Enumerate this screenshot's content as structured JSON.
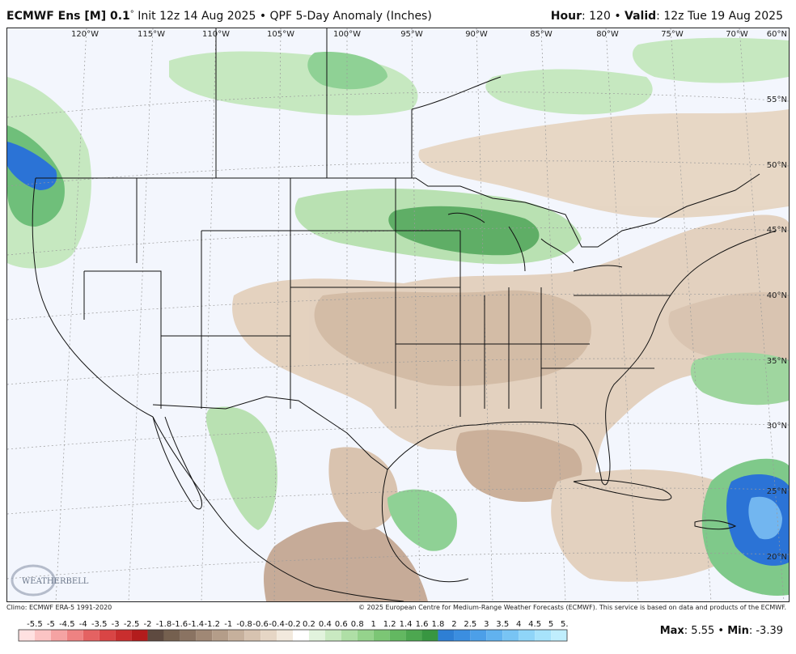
{
  "header": {
    "model": "ECMWF Ens [M] 0.1",
    "degree_symbol": "°",
    "init": " Init 12z 14 Aug 2025 • QPF 5-Day Anomaly (Inches)",
    "hour_label": "Hour",
    "hour_value": ": 120 • ",
    "valid_label": "Valid",
    "valid_value": ": 12z Tue 19 Aug 2025"
  },
  "map": {
    "lon_labels": [
      "120°W",
      "115°W",
      "110°W",
      "105°W",
      "100°W",
      "95°W",
      "90°W",
      "85°W",
      "80°W",
      "75°W",
      "70°W"
    ],
    "lat_labels": [
      "60°N",
      "55°N",
      "50°N",
      "45°N",
      "40°N",
      "35°N",
      "30°N",
      "25°N",
      "20°N"
    ],
    "logo": "WEATHERBELL",
    "colors": {
      "ocean_background": "#f3f6fd",
      "dry_light": "#eadcc9",
      "dry_medium": "#d6bda6",
      "dry_dark": "#9c8574",
      "wet_light": "#c6e8c0",
      "wet_medium": "#7fc98a",
      "wet_dark": "#3f9e55",
      "very_wet": "#2b73d6"
    }
  },
  "footer": {
    "climo": "Climo: ECMWF ERA-5 1991-2020",
    "copyright": "© 2025 European Centre for Medium-Range Weather Forecasts (ECMWF). This service is based on data and products of the ECMWF."
  },
  "colorbar": {
    "labels": [
      "-5.5",
      "-5",
      "-4.5",
      "-4",
      "-3.5",
      "-3",
      "-2.5",
      "-2",
      "-1.8",
      "-1.6",
      "-1.4",
      "-1.2",
      "-1",
      "-0.8",
      "-0.6",
      "-0.4",
      "-0.2",
      "0.2",
      "0.4",
      "0.6",
      "0.8",
      "1",
      "1.2",
      "1.4",
      "1.6",
      "1.8",
      "2",
      "2.5",
      "3",
      "3.5",
      "4",
      "4.5",
      "5",
      "5.5"
    ],
    "colors": [
      "#ffe1e1",
      "#fbc4c4",
      "#f5a3a3",
      "#ee8282",
      "#e46262",
      "#d94545",
      "#c92e2e",
      "#b31c1c",
      "#5e4a40",
      "#75604f",
      "#8a7362",
      "#a08875",
      "#b49d89",
      "#c6b09c",
      "#d7c3b0",
      "#e6d6c5",
      "#f2e9dd",
      "#ffffff",
      "#e2f3dd",
      "#c9e9c1",
      "#afdfa6",
      "#95d38c",
      "#7cc675",
      "#63b861",
      "#4da750",
      "#389641",
      "#2e7fd4",
      "#3b8ee0",
      "#4c9fe8",
      "#61b2ef",
      "#78c4f4",
      "#8fd5f8",
      "#a7e3fb",
      "#c0eefd"
    ]
  },
  "stats": {
    "max_label": "Max",
    "max_value": ": 5.55 • ",
    "min_label": "Min",
    "min_value": ": -3.39"
  }
}
